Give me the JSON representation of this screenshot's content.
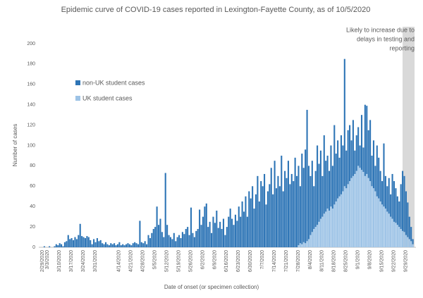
{
  "chart_data": {
    "type": "stacked-bar",
    "title": "Epidemic curve of COVID-19 cases reported in Lexington-Fayette County, as of 10/5/2020",
    "x_label": "Date of onset (or specimen collection)",
    "y_label": "Number of cases",
    "annotation": [
      "Likely to increase due to",
      "delays in testing and",
      "reporting"
    ],
    "ylim": [
      0,
      200
    ],
    "yticks": [
      0,
      20,
      40,
      60,
      80,
      100,
      120,
      140,
      160,
      180,
      200
    ],
    "legend": "upper-left",
    "categories": [
      "2/29/2020",
      null,
      null,
      "3/3/2020",
      null,
      null,
      null,
      null,
      null,
      null,
      "3/10/2020",
      null,
      null,
      null,
      null,
      null,
      null,
      "3/17/2020",
      null,
      null,
      null,
      null,
      null,
      null,
      "3/24/2020",
      null,
      null,
      null,
      null,
      null,
      null,
      "3/31/2020",
      null,
      null,
      null,
      null,
      null,
      null,
      null,
      null,
      null,
      null,
      null,
      null,
      null,
      "4/14/2020",
      null,
      null,
      null,
      null,
      null,
      null,
      "4/21/2020",
      null,
      null,
      null,
      null,
      null,
      null,
      "4/28/2020",
      null,
      null,
      null,
      null,
      null,
      null,
      "5/5/2020",
      null,
      null,
      null,
      null,
      null,
      null,
      "5/12/2020",
      null,
      null,
      null,
      null,
      null,
      null,
      "5/19/2020",
      null,
      null,
      null,
      null,
      null,
      null,
      "5/26/2020",
      null,
      null,
      null,
      null,
      null,
      null,
      "6/2/2020",
      null,
      null,
      null,
      null,
      null,
      null,
      "6/9/2020",
      null,
      null,
      null,
      null,
      null,
      null,
      "6/16/2020",
      null,
      null,
      null,
      null,
      null,
      null,
      "6/23/2020",
      null,
      null,
      null,
      null,
      null,
      null,
      "6/30/2020",
      null,
      null,
      null,
      null,
      null,
      null,
      "7/7/2020",
      null,
      null,
      null,
      null,
      null,
      null,
      "7/14/2020",
      null,
      null,
      null,
      null,
      null,
      null,
      "7/21/2020",
      null,
      null,
      null,
      null,
      null,
      null,
      "7/28/2020",
      null,
      null,
      null,
      null,
      null,
      null,
      "8/4/2020",
      null,
      null,
      null,
      null,
      null,
      null,
      "8/11/2020",
      null,
      null,
      null,
      null,
      null,
      null,
      "8/18/2020",
      null,
      null,
      null,
      null,
      null,
      null,
      "8/25/2020",
      null,
      null,
      null,
      null,
      null,
      null,
      "9/1/2020",
      null,
      null,
      null,
      null,
      null,
      null,
      "9/8/2020",
      null,
      null,
      null,
      null,
      null,
      null,
      "9/15/2020",
      null,
      null,
      null,
      null,
      null,
      null,
      "9/22/2020",
      null,
      null,
      null,
      null,
      null,
      null,
      "9/29/2020",
      null,
      null,
      null,
      null,
      null
    ],
    "series": [
      {
        "name": "non-UK student cases",
        "color": "#2e75b6",
        "values": [
          0,
          0,
          1,
          0,
          0,
          1,
          0,
          0,
          1,
          3,
          2,
          4,
          3,
          1,
          5,
          6,
          12,
          8,
          9,
          7,
          10,
          8,
          12,
          23,
          11,
          10,
          9,
          11,
          10,
          7,
          3,
          8,
          5,
          9,
          6,
          7,
          4,
          3,
          5,
          3,
          2,
          4,
          3,
          4,
          2,
          3,
          5,
          2,
          3,
          2,
          3,
          4,
          3,
          2,
          4,
          5,
          4,
          3,
          26,
          5,
          4,
          6,
          3,
          12,
          9,
          14,
          18,
          20,
          40,
          22,
          28,
          15,
          10,
          73,
          22,
          12,
          10,
          8,
          14,
          6,
          10,
          12,
          9,
          15,
          13,
          18,
          20,
          12,
          39,
          14,
          10,
          16,
          18,
          37,
          22,
          30,
          40,
          43,
          20,
          25,
          14,
          30,
          24,
          36,
          19,
          25,
          18,
          28,
          12,
          20,
          30,
          38,
          28,
          22,
          32,
          26,
          40,
          30,
          45,
          35,
          50,
          30,
          55,
          48,
          60,
          38,
          52,
          70,
          45,
          65,
          60,
          72,
          42,
          55,
          62,
          78,
          52,
          85,
          58,
          70,
          60,
          90,
          55,
          75,
          68,
          85,
          62,
          72,
          65,
          88,
          70,
          78,
          56,
          89,
          73,
          92,
          129,
          72,
          58,
          70,
          42,
          55,
          78,
          57,
          67,
          40,
          77,
          50,
          52,
          39,
          60,
          42,
          78,
          47,
          57,
          38,
          58,
          45,
          125,
          37,
          53,
          55,
          37,
          55,
          23,
          35,
          38,
          22,
          54,
          24,
          70,
          67,
          47,
          60,
          30,
          47,
          25,
          50,
          40,
          30,
          23,
          62,
          32,
          25,
          35,
          22,
          44,
          40,
          34,
          28,
          25,
          44,
          59,
          55,
          43,
          34,
          22,
          14,
          5
        ]
      },
      {
        "name": "UK student cases",
        "color": "#9dc3e6",
        "values": [
          0,
          0,
          0,
          0,
          0,
          0,
          0,
          0,
          0,
          0,
          0,
          0,
          0,
          0,
          0,
          0,
          0,
          0,
          0,
          0,
          0,
          0,
          0,
          0,
          0,
          0,
          0,
          0,
          0,
          0,
          0,
          0,
          0,
          0,
          0,
          0,
          0,
          0,
          0,
          0,
          0,
          0,
          0,
          0,
          0,
          0,
          0,
          0,
          0,
          0,
          0,
          0,
          0,
          0,
          0,
          0,
          0,
          0,
          0,
          0,
          0,
          0,
          0,
          0,
          0,
          0,
          0,
          0,
          0,
          0,
          0,
          0,
          0,
          0,
          0,
          0,
          0,
          0,
          0,
          0,
          0,
          0,
          0,
          0,
          0,
          0,
          0,
          0,
          0,
          0,
          0,
          0,
          0,
          0,
          0,
          0,
          0,
          0,
          0,
          0,
          0,
          0,
          0,
          0,
          0,
          0,
          0,
          0,
          0,
          0,
          0,
          0,
          0,
          0,
          0,
          0,
          0,
          0,
          0,
          0,
          0,
          0,
          0,
          0,
          0,
          0,
          0,
          0,
          0,
          0,
          0,
          0,
          0,
          0,
          0,
          0,
          0,
          0,
          0,
          0,
          0,
          0,
          0,
          0,
          0,
          0,
          0,
          0,
          0,
          0,
          0,
          2,
          4,
          3,
          5,
          4,
          6,
          8,
          12,
          15,
          18,
          20,
          22,
          25,
          28,
          30,
          33,
          35,
          38,
          36,
          40,
          38,
          42,
          45,
          48,
          50,
          52,
          55,
          60,
          58,
          62,
          65,
          68,
          70,
          72,
          75,
          80,
          78,
          76,
          74,
          70,
          72,
          68,
          65,
          60,
          58,
          55,
          50,
          48,
          45,
          42,
          40,
          38,
          35,
          33,
          30,
          28,
          25,
          24,
          22,
          20,
          18,
          16,
          15,
          12,
          10,
          8,
          6,
          3
        ]
      }
    ]
  }
}
